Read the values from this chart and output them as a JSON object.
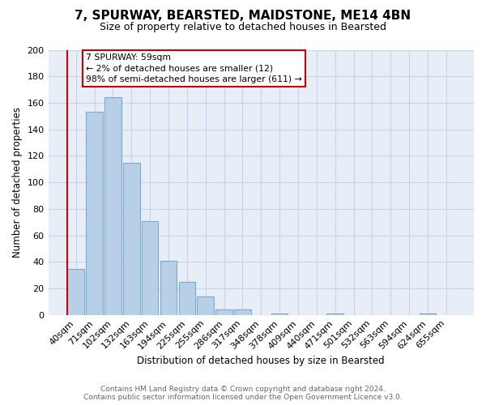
{
  "title": "7, SPURWAY, BEARSTED, MAIDSTONE, ME14 4BN",
  "subtitle": "Size of property relative to detached houses in Bearsted",
  "xlabel": "Distribution of detached houses by size in Bearsted",
  "ylabel": "Number of detached properties",
  "bar_color": "#b8cfe8",
  "bar_edge_color": "#7aaad0",
  "annotation_box_color": "#cc0000",
  "annotation_lines": [
    "7 SPURWAY: 59sqm",
    "← 2% of detached houses are smaller (12)",
    "98% of semi-detached houses are larger (611) →"
  ],
  "footer_lines": [
    "Contains HM Land Registry data © Crown copyright and database right 2024.",
    "Contains public sector information licensed under the Open Government Licence v3.0."
  ],
  "bins": [
    "40sqm",
    "71sqm",
    "102sqm",
    "132sqm",
    "163sqm",
    "194sqm",
    "225sqm",
    "255sqm",
    "286sqm",
    "317sqm",
    "348sqm",
    "378sqm",
    "409sqm",
    "440sqm",
    "471sqm",
    "501sqm",
    "532sqm",
    "563sqm",
    "594sqm",
    "624sqm",
    "655sqm"
  ],
  "values": [
    35,
    153,
    164,
    115,
    71,
    41,
    25,
    14,
    4,
    4,
    0,
    1,
    0,
    0,
    1,
    0,
    0,
    0,
    0,
    1,
    0
  ],
  "ylim": [
    0,
    200
  ],
  "yticks": [
    0,
    20,
    40,
    60,
    80,
    100,
    120,
    140,
    160,
    180,
    200
  ],
  "red_line_bar_index": 0,
  "plot_bg_color": "#e8eef8",
  "grid_color": "#c8d4e8"
}
